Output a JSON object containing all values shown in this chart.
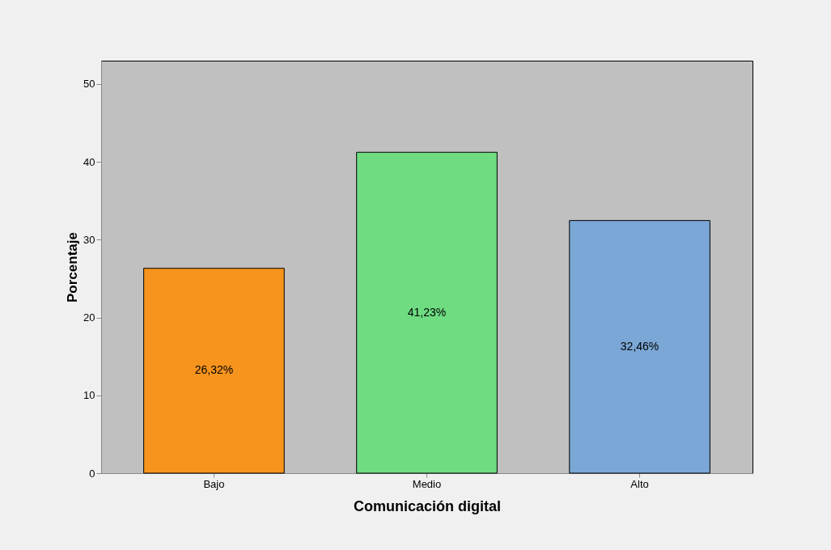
{
  "chart_data": {
    "type": "bar",
    "xlabel": "Comunicación digital",
    "ylabel": "Porcentaje",
    "categories": [
      "Bajo",
      "Medio",
      "Alto"
    ],
    "values": [
      26.32,
      41.23,
      32.46
    ],
    "colors": [
      "#f7941d",
      "#6fdc82",
      "#7ba7d6"
    ],
    "value_labels": [
      "26,32%",
      "41,23%",
      "32,46%"
    ],
    "ylim": [
      0,
      53
    ],
    "yticks": [
      0,
      10,
      20,
      30,
      40,
      50
    ],
    "grid": false,
    "legend": false
  }
}
